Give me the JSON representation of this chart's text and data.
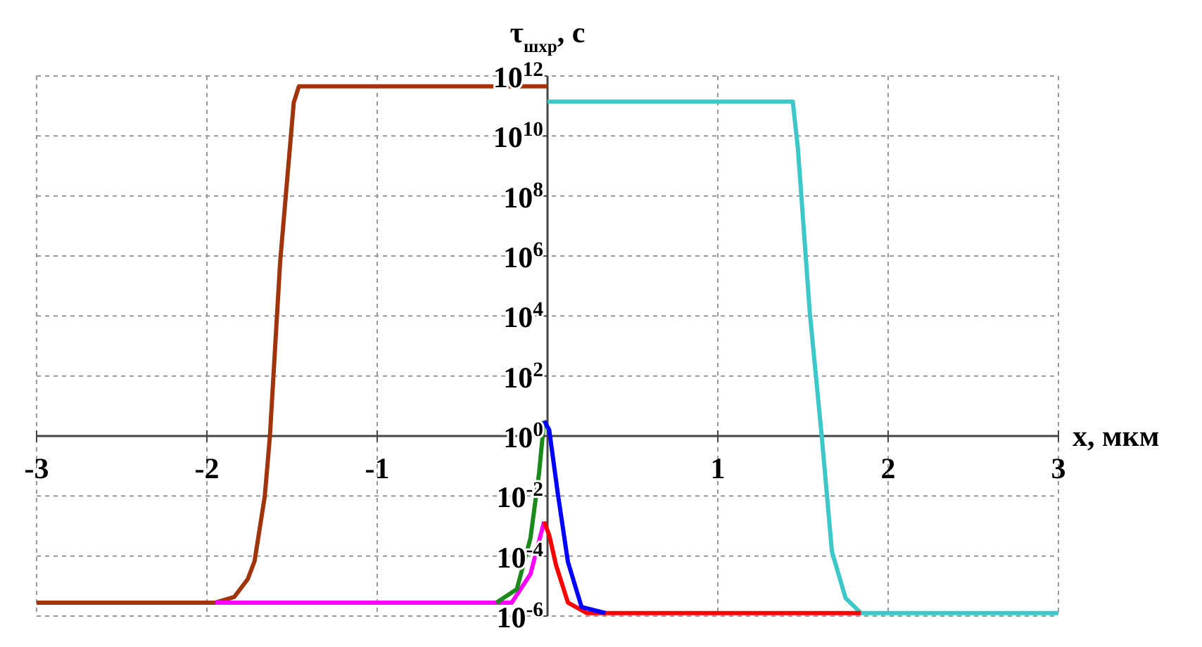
{
  "chart_data": {
    "type": "line",
    "ylabel": "τ$_{шхр}$, с",
    "xlabel": "x, мкм",
    "log": "y",
    "grid": true,
    "legend": false,
    "marker": "none",
    "line_style": "solid",
    "xlim": [
      -3,
      3
    ],
    "xticks": [
      -3,
      -2,
      -1,
      1,
      2,
      3
    ],
    "ylim": [
      1e-06,
      1000000000000.0
    ],
    "yticks": [
      {
        "value": 1e-06,
        "label": "10$^{-6}$"
      },
      {
        "value": 0.0001,
        "label": "10$^{-4}$"
      },
      {
        "value": 0.01,
        "label": "10$^{-2}$"
      },
      {
        "value": 1,
        "label": "10$^{0}$"
      },
      {
        "value": 100.0,
        "label": "10$^{2}$"
      },
      {
        "value": 10000.0,
        "label": "10$^{4}$"
      },
      {
        "value": 1000000.0,
        "label": "10$^{6}$"
      },
      {
        "value": 100000000.0,
        "label": "10$^{8}$"
      },
      {
        "value": 10000000000.0,
        "label": "10$^{10}$"
      },
      {
        "value": 1000000000000.0,
        "label": "10$^{12}$"
      }
    ],
    "series": [
      {
        "color": "#a0340c",
        "x": [
          -3,
          -1.95,
          -1.84,
          -1.76,
          -1.72,
          -1.66,
          -1.63,
          -1.57,
          -1.49,
          -1.46,
          0
        ],
        "values": [
          2.8e-06,
          2.8e-06,
          4.3e-06,
          1.7e-05,
          6.8e-05,
          0.01,
          1,
          630000.0,
          130000000000.0,
          450000000000.0,
          450000000000.0
        ]
      },
      {
        "color": "#3cc8c8",
        "x": [
          0,
          1.44,
          1.47,
          1.54,
          1.61,
          1.67,
          1.75,
          1.84,
          3
        ],
        "values": [
          140000000000.0,
          140000000000.0,
          4000000000.0,
          13000.0,
          1,
          0.00014,
          4e-06,
          1.26e-06,
          1.26e-06
        ]
      },
      {
        "color": "#ff00ff",
        "x": [
          -1.95,
          -0.21,
          -0.1,
          -0.02
        ],
        "values": [
          2.8e-06,
          2.8e-06,
          2.5e-05,
          0.0014
        ]
      },
      {
        "color": "#1a8a1a",
        "x": [
          -0.3,
          -0.18,
          -0.1,
          -0.05,
          -0.02
        ],
        "values": [
          2.8e-06,
          7.9e-06,
          0.0004,
          0.056,
          3.2
        ]
      },
      {
        "color": "#ff0000",
        "x": [
          -0.02,
          0.01,
          0.05,
          0.12,
          0.23,
          1.84
        ],
        "values": [
          0.0014,
          0.0005,
          5e-05,
          2.8e-06,
          1.26e-06,
          1.26e-06
        ]
      },
      {
        "color": "#0000ff",
        "x": [
          -0.02,
          0.01,
          0.06,
          0.12,
          0.2,
          0.34
        ],
        "values": [
          3.2,
          1.6,
          0.0126,
          6.3e-05,
          2e-06,
          1.26e-06
        ]
      }
    ]
  }
}
